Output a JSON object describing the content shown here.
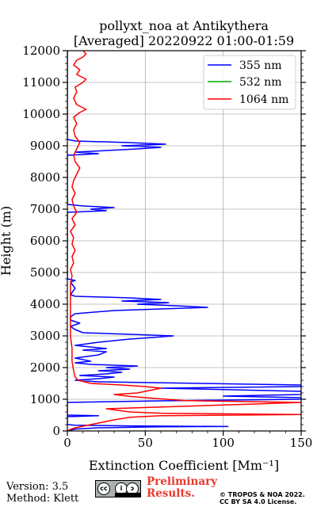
{
  "chart_data": {
    "type": "line",
    "title": [
      "pollyxt_noa at Antikythera",
      "[Averaged] 20220922 01:00-01:59"
    ],
    "xlabel": "Extinction Coefficient [Mm⁻¹]",
    "ylabel": "Height (m)",
    "xlim": [
      0,
      150
    ],
    "ylim": [
      0,
      12000
    ],
    "xticks": [
      "0",
      "50",
      "100",
      "150"
    ],
    "yticks": [
      "0",
      "1000",
      "2000",
      "3000",
      "4000",
      "5000",
      "6000",
      "7000",
      "8000",
      "9000",
      "10000",
      "11000",
      "12000"
    ],
    "grid": true,
    "legend_position": "top-right",
    "series": [
      {
        "name": "355 nm",
        "color": "#0000ff",
        "points": [
          [
            0,
            0
          ],
          [
            5,
            60
          ],
          [
            20,
            100
          ],
          [
            60,
            130
          ],
          [
            103,
            140
          ],
          [
            40,
            160
          ],
          [
            5,
            180
          ],
          [
            0,
            200
          ],
          [
            0,
            450
          ],
          [
            20,
            480
          ],
          [
            0,
            500
          ],
          [
            0,
            900
          ],
          [
            60,
            950
          ],
          [
            150,
            1000
          ],
          [
            150,
            1050
          ],
          [
            100,
            1100
          ],
          [
            150,
            1150
          ],
          [
            150,
            1250
          ],
          [
            60,
            1350
          ],
          [
            150,
            1400
          ],
          [
            150,
            1450
          ],
          [
            20,
            1550
          ],
          [
            5,
            1600
          ],
          [
            20,
            1650
          ],
          [
            30,
            1700
          ],
          [
            8,
            1750
          ],
          [
            25,
            1800
          ],
          [
            35,
            1850
          ],
          [
            20,
            1900
          ],
          [
            40,
            1950
          ],
          [
            25,
            2000
          ],
          [
            45,
            2050
          ],
          [
            15,
            2100
          ],
          [
            5,
            2150
          ],
          [
            15,
            2200
          ],
          [
            5,
            2300
          ],
          [
            20,
            2400
          ],
          [
            25,
            2500
          ],
          [
            10,
            2550
          ],
          [
            25,
            2600
          ],
          [
            5,
            2700
          ],
          [
            20,
            2800
          ],
          [
            30,
            2850
          ],
          [
            40,
            2900
          ],
          [
            55,
            2950
          ],
          [
            68,
            3000
          ],
          [
            40,
            3050
          ],
          [
            10,
            3100
          ],
          [
            5,
            3200
          ],
          [
            2,
            3300
          ],
          [
            8,
            3400
          ],
          [
            2,
            3500
          ],
          [
            2,
            3600
          ],
          [
            5,
            3700
          ],
          [
            30,
            3800
          ],
          [
            60,
            3850
          ],
          [
            90,
            3900
          ],
          [
            70,
            3950
          ],
          [
            45,
            4000
          ],
          [
            65,
            4050
          ],
          [
            35,
            4100
          ],
          [
            60,
            4150
          ],
          [
            40,
            4200
          ],
          [
            5,
            4250
          ],
          [
            2,
            4300
          ],
          [
            5,
            4500
          ],
          [
            2,
            4700
          ],
          [
            5,
            4750
          ],
          [
            0,
            4800
          ],
          [
            0,
            6900
          ],
          [
            25,
            6950
          ],
          [
            15,
            7000
          ],
          [
            30,
            7050
          ],
          [
            10,
            7100
          ],
          [
            0,
            7150
          ],
          [
            0,
            8700
          ],
          [
            20,
            8750
          ],
          [
            5,
            8800
          ],
          [
            25,
            8850
          ],
          [
            45,
            8900
          ],
          [
            60,
            8950
          ],
          [
            35,
            9000
          ],
          [
            63,
            9050
          ],
          [
            40,
            9100
          ],
          [
            5,
            9150
          ],
          [
            0,
            9200
          ],
          [
            0,
            12000
          ]
        ]
      },
      {
        "name": "532 nm",
        "color": "#00aa00",
        "points": []
      },
      {
        "name": "1064 nm",
        "color": "#ff0000",
        "points": [
          [
            0,
            0
          ],
          [
            2,
            50
          ],
          [
            5,
            100
          ],
          [
            10,
            150
          ],
          [
            20,
            250
          ],
          [
            30,
            350
          ],
          [
            40,
            430
          ],
          [
            60,
            480
          ],
          [
            150,
            520
          ],
          [
            100,
            540
          ],
          [
            60,
            560
          ],
          [
            40,
            600
          ],
          [
            25,
            700
          ],
          [
            120,
            850
          ],
          [
            150,
            900
          ],
          [
            75,
            960
          ],
          [
            55,
            1030
          ],
          [
            40,
            1090
          ],
          [
            30,
            1150
          ],
          [
            45,
            1200
          ],
          [
            55,
            1300
          ],
          [
            60,
            1350
          ],
          [
            50,
            1400
          ],
          [
            35,
            1450
          ],
          [
            15,
            1500
          ],
          [
            7,
            1600
          ],
          [
            5,
            1700
          ],
          [
            4,
            1900
          ],
          [
            3,
            2200
          ],
          [
            3,
            2600
          ],
          [
            2,
            3000
          ],
          [
            2,
            3400
          ],
          [
            2,
            3800
          ],
          [
            2,
            4200
          ],
          [
            2,
            4600
          ],
          [
            3,
            4900
          ],
          [
            2,
            5100
          ],
          [
            4,
            5300
          ],
          [
            3,
            5500
          ],
          [
            5,
            5700
          ],
          [
            3,
            5900
          ],
          [
            4,
            6100
          ],
          [
            2,
            6300
          ],
          [
            5,
            6500
          ],
          [
            3,
            6700
          ],
          [
            6,
            6900
          ],
          [
            4,
            7100
          ],
          [
            3,
            7300
          ],
          [
            5,
            7500
          ],
          [
            3,
            7700
          ],
          [
            4,
            7900
          ],
          [
            6,
            8100
          ],
          [
            8,
            8300
          ],
          [
            5,
            8500
          ],
          [
            4,
            8700
          ],
          [
            6,
            8900
          ],
          [
            8,
            9100
          ],
          [
            5,
            9300
          ],
          [
            4,
            9500
          ],
          [
            6,
            9700
          ],
          [
            4,
            9900
          ],
          [
            8,
            10050
          ],
          [
            12,
            10150
          ],
          [
            6,
            10300
          ],
          [
            4,
            10500
          ],
          [
            6,
            10700
          ],
          [
            5,
            10850
          ],
          [
            10,
            11000
          ],
          [
            12,
            11100
          ],
          [
            6,
            11250
          ],
          [
            8,
            11400
          ],
          [
            4,
            11550
          ],
          [
            6,
            11700
          ],
          [
            10,
            11800
          ],
          [
            12,
            11900
          ],
          [
            10,
            12000
          ]
        ]
      }
    ]
  },
  "footer": {
    "version": "Version: 3.5",
    "method": "Method: Klett",
    "preliminary": [
      "Preliminary",
      "Results."
    ],
    "license": [
      "© TROPOS & NOA 2022.",
      "CC BY SA 4.0 License."
    ],
    "cc_badge": {
      "marks": [
        "cc",
        "i",
        "ↄ"
      ],
      "text": "BY  SA"
    }
  }
}
